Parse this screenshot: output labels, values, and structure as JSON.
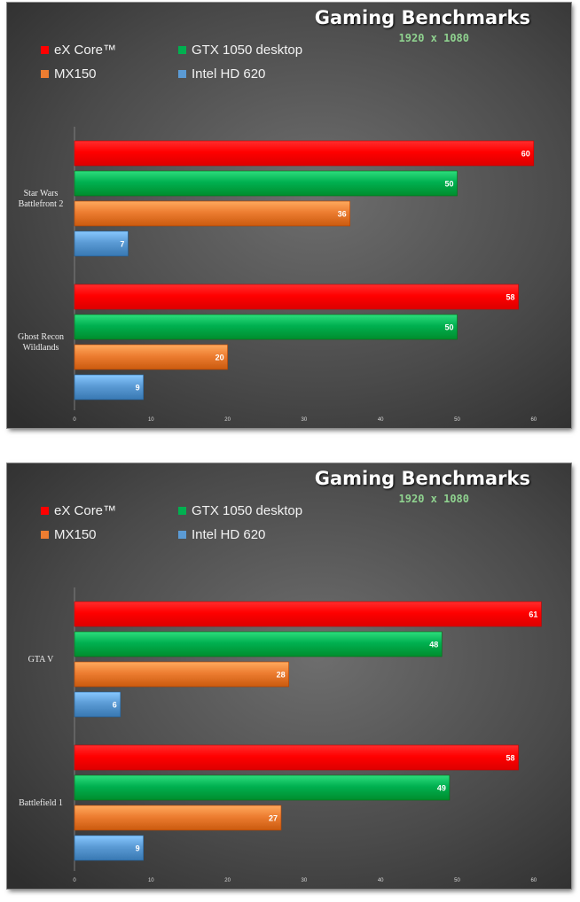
{
  "chart_data": [
    {
      "type": "bar",
      "orientation": "horizontal",
      "title": "Gaming Benchmarks",
      "subtitle": "1920 x 1080",
      "categories": [
        "Star Wars Battlefront 2",
        "Ghost Recon Wildlands"
      ],
      "series": [
        {
          "name": "eX Core™",
          "color": "#ff0000",
          "values": [
            60,
            58
          ]
        },
        {
          "name": "GTX 1050 desktop",
          "color": "#00b050",
          "values": [
            50,
            50
          ]
        },
        {
          "name": "MX150",
          "color": "#ed7d31",
          "values": [
            36,
            20
          ]
        },
        {
          "name": "Intel HD 620",
          "color": "#5b9bd5",
          "values": [
            7,
            9
          ]
        }
      ],
      "x_ticks": [
        0,
        10,
        20,
        30,
        40,
        50,
        60
      ],
      "xlim": [
        0,
        60
      ],
      "legend_position": "top-left",
      "grid": false
    },
    {
      "type": "bar",
      "orientation": "horizontal",
      "title": "Gaming Benchmarks",
      "subtitle": "1920 x 1080",
      "categories": [
        "GTA V",
        "Battlefield 1"
      ],
      "series": [
        {
          "name": "eX Core™",
          "color": "#ff0000",
          "values": [
            61,
            58
          ]
        },
        {
          "name": "GTX 1050 desktop",
          "color": "#00b050",
          "values": [
            48,
            49
          ]
        },
        {
          "name": "MX150",
          "color": "#ed7d31",
          "values": [
            28,
            27
          ]
        },
        {
          "name": "Intel HD 620",
          "color": "#5b9bd5",
          "values": [
            6,
            9
          ]
        }
      ],
      "x_ticks": [
        0,
        10,
        20,
        30,
        40,
        50,
        60
      ],
      "xlim": [
        0,
        60
      ],
      "legend_position": "top-left",
      "grid": false
    }
  ]
}
